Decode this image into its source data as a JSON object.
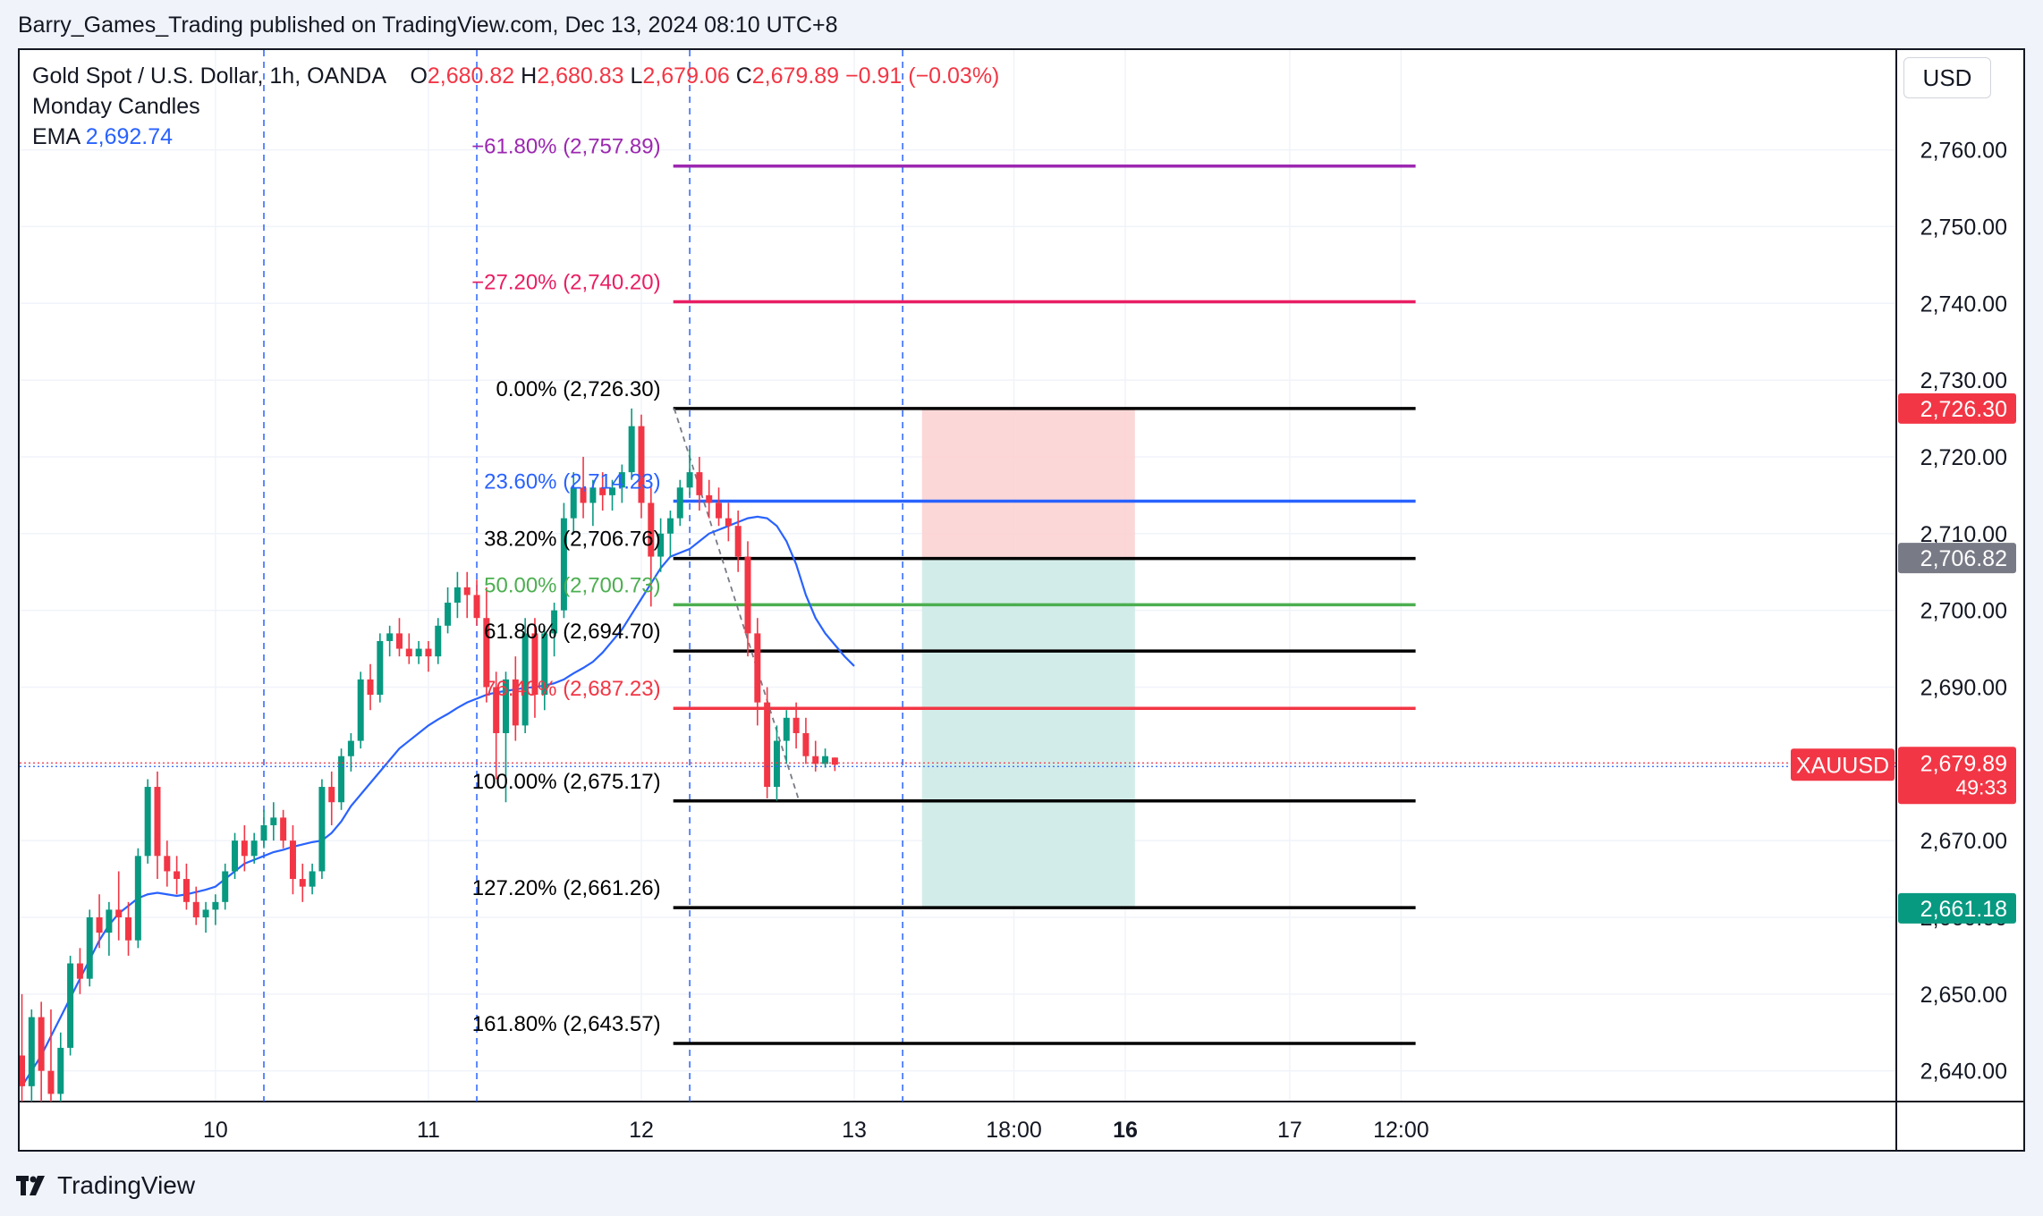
{
  "header": {
    "text": "Barry_Games_Trading published on TradingView.com, Dec 13, 2024 08:10 UTC+8"
  },
  "legend": {
    "symbol": "Gold Spot / U.S. Dollar, 1h, OANDA",
    "o_label": "O",
    "o_value": "2,680.82",
    "h_label": "H",
    "h_value": "2,680.83",
    "l_label": "L",
    "l_value": "2,679.06",
    "c_label": "C",
    "c_value": "2,679.89",
    "change": "−0.91 (−0.03%)",
    "indicator1": "Monday Candles",
    "ema_label": "EMA",
    "ema_value": "2,692.74"
  },
  "currency": "USD",
  "footer": {
    "brand": "TradingView"
  },
  "colors": {
    "up": "#089981",
    "down": "#f23645",
    "ema": "#2962ff",
    "risk_zone": "#fcd3d3",
    "reward_zone": "#cdebe7"
  },
  "chart_data": {
    "type": "candlestick",
    "timeframe": "1h",
    "y_axis_ticks": [
      "2,640.00",
      "2,650.00",
      "2,660.00",
      "2,670.00",
      "2,680.00",
      "2,690.00",
      "2,700.00",
      "2,710.00",
      "2,720.00",
      "2,730.00",
      "2,740.00",
      "2,750.00",
      "2,760.00"
    ],
    "ylim": [
      2636,
      2773
    ],
    "x_axis_labels": [
      {
        "label": "10",
        "bar": 20
      },
      {
        "label": "11",
        "bar": 42
      },
      {
        "label": "12",
        "bar": 64
      },
      {
        "label": "13",
        "bar": 86
      },
      {
        "label": "18:00",
        "bar": 102.5
      },
      {
        "label": "16",
        "bar": 114
      },
      {
        "label": "17",
        "bar": 131
      },
      {
        "label": "12:00",
        "bar": 142.5
      }
    ],
    "monday_separators": [
      25,
      47,
      69,
      91
    ],
    "price_labels": [
      {
        "text": "2,726.30",
        "value": 2726.3,
        "color": "#f23645"
      },
      {
        "text": "2,706.82",
        "value": 2706.82,
        "color": "#787b86"
      },
      {
        "text": "2,661.18",
        "value": 2661.18,
        "color": "#089981"
      }
    ],
    "last_price": {
      "symbol": "XAUUSD",
      "value": 2679.89,
      "text": "2,679.89",
      "countdown": "49:33"
    },
    "fibonacci": {
      "x_start_bar": 67.3,
      "x_end_bar": 144,
      "label_right_bar": 66,
      "levels": [
        {
          "label": "−61.80% (2,757.89)",
          "value": 2757.89,
          "color": "#9c27b0"
        },
        {
          "label": "−27.20% (2,740.20)",
          "value": 2740.2,
          "color": "#e91e63"
        },
        {
          "label": "0.00% (2,726.30)",
          "value": 2726.3,
          "color": "#000000"
        },
        {
          "label": "23.60% (2,714.23)",
          "value": 2714.23,
          "color": "#2962ff"
        },
        {
          "label": "38.20% (2,706.76)",
          "value": 2706.76,
          "color": "#000000"
        },
        {
          "label": "50.00% (2,700.73)",
          "value": 2700.73,
          "color": "#4caf50"
        },
        {
          "label": "61.80% (2,694.70)",
          "value": 2694.7,
          "color": "#000000"
        },
        {
          "label": "76.40% (2,687.23)",
          "value": 2687.23,
          "color": "#f23645"
        },
        {
          "label": "100.00% (2,675.17)",
          "value": 2675.17,
          "color": "#000000"
        },
        {
          "label": "127.20% (2,661.26)",
          "value": 2661.26,
          "color": "#000000"
        },
        {
          "label": "161.80% (2,643.57)",
          "value": 2643.57,
          "color": "#000000"
        }
      ]
    },
    "fib_trend_line": {
      "from": {
        "bar": 67.4,
        "price": 2726.3
      },
      "to": {
        "bar": 80.3,
        "price": 2675.17
      }
    },
    "position_tool": {
      "x_start_bar": 93,
      "x_end_bar": 115,
      "entry": 2706.82,
      "stop": 2726.3,
      "target": 2661.18
    },
    "ema": [
      2638.0,
      2640.0,
      2642.0,
      2644.5,
      2647.0,
      2649.5,
      2652.0,
      2654.5,
      2657.0,
      2659.0,
      2660.5,
      2661.5,
      2662.5,
      2663.0,
      2663.2,
      2663.0,
      2662.8,
      2663.0,
      2663.3,
      2663.6,
      2664.0,
      2665.0,
      2666.0,
      2667.0,
      2667.5,
      2668.0,
      2668.5,
      2668.8,
      2669.2,
      2669.5,
      2669.8,
      2670.0,
      2671.0,
      2672.5,
      2674.5,
      2676.0,
      2677.5,
      2679.0,
      2680.5,
      2682.0,
      2683.0,
      2684.0,
      2685.0,
      2685.8,
      2686.5,
      2687.3,
      2688.0,
      2688.5,
      2689.0,
      2689.3,
      2689.5,
      2689.7,
      2689.9,
      2690.0,
      2690.2,
      2690.5,
      2691.0,
      2691.8,
      2692.5,
      2693.3,
      2694.5,
      2696.0,
      2697.5,
      2699.5,
      2701.5,
      2703.5,
      2705.5,
      2707.0,
      2707.5,
      2708.0,
      2709.0,
      2710.0,
      2710.5,
      2711.0,
      2711.5,
      2712.0,
      2712.2,
      2712.0,
      2711.0,
      2709.0,
      2706.0,
      2702.0,
      2699.0,
      2697.0,
      2695.5,
      2694.0,
      2692.74
    ],
    "ohlc": [
      [
        2642.0,
        2650.0,
        2632.0,
        2638.0
      ],
      [
        2638.0,
        2648.0,
        2636.0,
        2647.0
      ],
      [
        2647.0,
        2649.0,
        2635.0,
        2640.0
      ],
      [
        2640.0,
        2648.0,
        2632.0,
        2637.0
      ],
      [
        2637.0,
        2645.0,
        2636.0,
        2643.0
      ],
      [
        2643.0,
        2655.0,
        2642.0,
        2654.0
      ],
      [
        2654.0,
        2656.0,
        2650.0,
        2652.0
      ],
      [
        2652.0,
        2661.0,
        2651.0,
        2660.0
      ],
      [
        2660.0,
        2663.0,
        2656.0,
        2658.0
      ],
      [
        2658.0,
        2662.0,
        2655.0,
        2661.0
      ],
      [
        2661.0,
        2666.0,
        2657.0,
        2660.0
      ],
      [
        2660.0,
        2662.0,
        2655.0,
        2657.0
      ],
      [
        2657.0,
        2669.0,
        2656.0,
        2668.0
      ],
      [
        2668.0,
        2678.0,
        2667.0,
        2677.0
      ],
      [
        2677.0,
        2679.0,
        2665.0,
        2668.0
      ],
      [
        2668.0,
        2670.0,
        2664.0,
        2666.0
      ],
      [
        2666.0,
        2668.0,
        2663.0,
        2665.0
      ],
      [
        2665.0,
        2667.0,
        2661.0,
        2662.0
      ],
      [
        2662.0,
        2664.0,
        2659.0,
        2660.0
      ],
      [
        2660.0,
        2662.0,
        2658.0,
        2661.0
      ],
      [
        2661.0,
        2663.0,
        2659.0,
        2662.0
      ],
      [
        2662.0,
        2667.0,
        2661.0,
        2666.0
      ],
      [
        2666.0,
        2671.0,
        2665.0,
        2670.0
      ],
      [
        2670.0,
        2672.0,
        2666.0,
        2668.0
      ],
      [
        2668.0,
        2671.0,
        2667.0,
        2670.0
      ],
      [
        2670.0,
        2674.0,
        2669.0,
        2672.0
      ],
      [
        2672.0,
        2675.0,
        2670.0,
        2673.0
      ],
      [
        2673.0,
        2674.0,
        2669.0,
        2670.0
      ],
      [
        2670.0,
        2672.0,
        2663.0,
        2665.0
      ],
      [
        2665.0,
        2667.0,
        2662.0,
        2664.0
      ],
      [
        2664.0,
        2667.0,
        2663.0,
        2666.0
      ],
      [
        2666.0,
        2678.0,
        2665.0,
        2677.0
      ],
      [
        2677.0,
        2679.0,
        2672.0,
        2675.0
      ],
      [
        2675.0,
        2682.0,
        2674.0,
        2681.0
      ],
      [
        2681.0,
        2684.0,
        2679.0,
        2683.0
      ],
      [
        2683.0,
        2692.0,
        2682.0,
        2691.0
      ],
      [
        2691.0,
        2693.0,
        2687.0,
        2689.0
      ],
      [
        2689.0,
        2697.0,
        2688.0,
        2696.0
      ],
      [
        2696.0,
        2698.0,
        2694.0,
        2697.0
      ],
      [
        2697.0,
        2699.0,
        2694.0,
        2695.0
      ],
      [
        2695.0,
        2697.0,
        2693.0,
        2694.0
      ],
      [
        2694.0,
        2696.0,
        2693.0,
        2695.0
      ],
      [
        2695.0,
        2696.0,
        2692.0,
        2694.0
      ],
      [
        2694.0,
        2699.0,
        2693.0,
        2698.0
      ],
      [
        2698.0,
        2703.0,
        2697.0,
        2701.0
      ],
      [
        2701.0,
        2705.0,
        2699.0,
        2703.0
      ],
      [
        2703.0,
        2705.0,
        2699.0,
        2702.0
      ],
      [
        2702.0,
        2704.0,
        2698.0,
        2699.0
      ],
      [
        2699.0,
        2703.0,
        2688.0,
        2690.0
      ],
      [
        2690.0,
        2692.0,
        2678.0,
        2684.0
      ],
      [
        2684.0,
        2692.0,
        2675.0,
        2691.0
      ],
      [
        2691.0,
        2694.0,
        2683.0,
        2685.0
      ],
      [
        2685.0,
        2699.0,
        2684.0,
        2697.0
      ],
      [
        2697.0,
        2699.0,
        2686.0,
        2689.0
      ],
      [
        2689.0,
        2698.0,
        2687.0,
        2697.0
      ],
      [
        2697.0,
        2701.0,
        2694.0,
        2700.0
      ],
      [
        2700.0,
        2714.0,
        2699.0,
        2712.0
      ],
      [
        2712.0,
        2718.0,
        2710.0,
        2716.0
      ],
      [
        2716.0,
        2720.0,
        2712.0,
        2714.0
      ],
      [
        2714.0,
        2717.0,
        2711.0,
        2716.0
      ],
      [
        2716.0,
        2718.0,
        2713.0,
        2715.0
      ],
      [
        2715.0,
        2717.0,
        2713.0,
        2716.0
      ],
      [
        2716.0,
        2719.0,
        2714.0,
        2718.0
      ],
      [
        2718.0,
        2726.3,
        2717.0,
        2724.0
      ],
      [
        2724.0,
        2725.5,
        2712.0,
        2714.0
      ],
      [
        2714.0,
        2716.0,
        2700.5,
        2707.0
      ],
      [
        2707.0,
        2712.0,
        2705.0,
        2710.0
      ],
      [
        2710.0,
        2713.0,
        2707.0,
        2712.0
      ],
      [
        2712.0,
        2717.0,
        2711.0,
        2716.0
      ],
      [
        2716.0,
        2721.0,
        2715.0,
        2718.0
      ],
      [
        2718.0,
        2720.0,
        2713.0,
        2715.0
      ],
      [
        2715.0,
        2717.0,
        2712.0,
        2714.0
      ],
      [
        2714.0,
        2716.0,
        2711.0,
        2712.0
      ],
      [
        2712.0,
        2714.0,
        2709.0,
        2711.0
      ],
      [
        2711.0,
        2713.0,
        2705.0,
        2707.0
      ],
      [
        2707.0,
        2709.0,
        2694.0,
        2697.0
      ],
      [
        2697.0,
        2699.0,
        2685.0,
        2688.0
      ],
      [
        2688.0,
        2690.0,
        2675.5,
        2677.0
      ],
      [
        2677.0,
        2685.0,
        2675.2,
        2683.0
      ],
      [
        2683.0,
        2687.0,
        2680.0,
        2686.0
      ],
      [
        2686.0,
        2688.0,
        2682.0,
        2684.0
      ],
      [
        2684.0,
        2686.0,
        2680.0,
        2681.0
      ],
      [
        2681.0,
        2683.0,
        2679.0,
        2680.0
      ],
      [
        2680.0,
        2682.0,
        2679.5,
        2681.0
      ],
      [
        2680.82,
        2680.83,
        2679.06,
        2679.89
      ]
    ]
  }
}
